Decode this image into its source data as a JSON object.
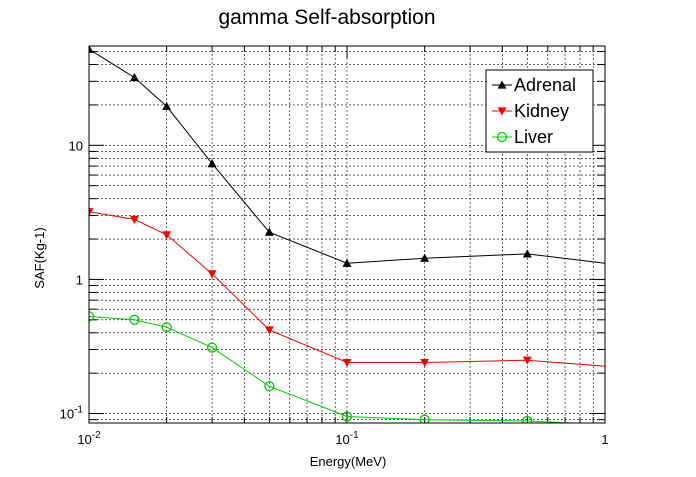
{
  "chart_data": {
    "type": "line",
    "title": "gamma Self-absorption",
    "xlabel": "Energy(MeV)",
    "ylabel": "SAF(Kg-1)",
    "x_scale": "log",
    "y_scale": "log",
    "xlim": [
      0.01,
      1
    ],
    "ylim": [
      0.085,
      55
    ],
    "grid": true,
    "legend_position": "top-right",
    "x_tick_labels": [
      {
        "value": 0.01,
        "base": "10",
        "exp": "-2"
      },
      {
        "value": 0.1,
        "base": "10",
        "exp": "-1"
      },
      {
        "value": 1,
        "base": "1",
        "exp": ""
      }
    ],
    "y_tick_labels": [
      {
        "value": 0.1,
        "base": "10",
        "exp": "-1"
      },
      {
        "value": 1,
        "base": "1",
        "exp": ""
      },
      {
        "value": 10,
        "base": "10",
        "exp": ""
      }
    ],
    "x": [
      0.01,
      0.015,
      0.02,
      0.03,
      0.05,
      0.1,
      0.2,
      0.5,
      1.0
    ],
    "series": [
      {
        "name": "Adrenal",
        "marker": "triangle-up",
        "color": "#000000",
        "values": [
          52,
          32,
          19.5,
          7.3,
          2.25,
          1.32,
          1.44,
          1.55,
          1.32
        ]
      },
      {
        "name": "Kidney",
        "marker": "triangle-down",
        "color": "#ff0000",
        "values": [
          3.2,
          2.8,
          2.15,
          1.1,
          0.42,
          0.24,
          0.24,
          0.25,
          0.225
        ]
      },
      {
        "name": "Liver",
        "marker": "open-circle",
        "color": "#00cc00",
        "values": [
          0.53,
          0.5,
          0.44,
          0.31,
          0.16,
          0.095,
          0.09,
          0.088,
          0.083
        ]
      }
    ]
  }
}
